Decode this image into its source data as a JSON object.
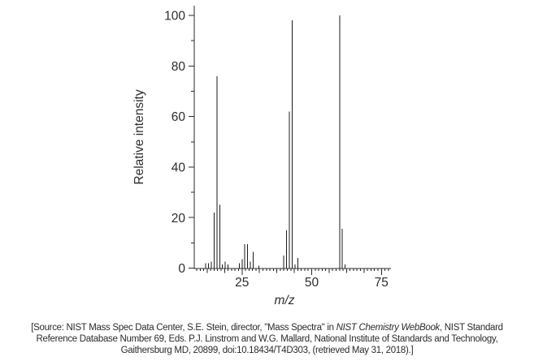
{
  "chart_data": {
    "type": "bar",
    "chart_kind": "mass-spectrum-stick-plot",
    "title": "",
    "xlabel": "m/z",
    "ylabel": "Relative intensity",
    "xlim": [
      7.5,
      78.5
    ],
    "ylim": [
      0,
      100
    ],
    "grid": false,
    "legend": null,
    "x_axis": {
      "major_ticks": [
        25,
        50,
        75
      ],
      "medium_tick_step": 6.25,
      "minor_tick_step": 1.25,
      "first_minor_tick": 8.75,
      "last_minor_tick": 77.5
    },
    "y_axis": {
      "major_ticks": [
        0,
        20,
        40,
        60,
        80,
        100
      ],
      "minor_ticks": [
        10,
        30,
        50,
        70,
        90
      ]
    },
    "peaks": [
      {
        "mz": 12,
        "intensity": 2
      },
      {
        "mz": 13,
        "intensity": 2
      },
      {
        "mz": 14,
        "intensity": 2.5
      },
      {
        "mz": 15,
        "intensity": 22
      },
      {
        "mz": 16,
        "intensity": 76
      },
      {
        "mz": 17,
        "intensity": 25
      },
      {
        "mz": 18,
        "intensity": 1.5
      },
      {
        "mz": 19,
        "intensity": 2.5
      },
      {
        "mz": 20,
        "intensity": 1.5
      },
      {
        "mz": 24,
        "intensity": 2
      },
      {
        "mz": 25,
        "intensity": 3.5
      },
      {
        "mz": 26,
        "intensity": 9.5
      },
      {
        "mz": 27,
        "intensity": 9.5
      },
      {
        "mz": 28,
        "intensity": 2.5
      },
      {
        "mz": 29,
        "intensity": 6.5
      },
      {
        "mz": 31,
        "intensity": 1
      },
      {
        "mz": 40,
        "intensity": 5
      },
      {
        "mz": 41,
        "intensity": 15
      },
      {
        "mz": 42,
        "intensity": 62
      },
      {
        "mz": 43,
        "intensity": 98
      },
      {
        "mz": 44,
        "intensity": 1.5
      },
      {
        "mz": 45,
        "intensity": 4
      },
      {
        "mz": 60,
        "intensity": 100
      },
      {
        "mz": 61,
        "intensity": 15.5
      },
      {
        "mz": 62,
        "intensity": 1.5
      }
    ]
  },
  "citation": {
    "line1_prefix": "[Source: NIST Mass Spec Data Center, S.E. Stein, director, \"Mass Spectra\" in ",
    "line1_italic": "NIST Chemistry WebBook",
    "line1_suffix": ", NIST Standard",
    "line2": "Reference Database Number 69, Eds. P.J. Linstrom and W.G. Mallard, National Institute of Standards and Technology,",
    "line3": "Gaithersburg MD, 20899, doi:10.18434/T4D303, (retrieved May 31, 2018).]"
  },
  "colors": {
    "background": "#ffffff",
    "axis": "#2a2a2a",
    "peak": "#1b1b1b",
    "text": "#2d2d2d",
    "citation_text": "#2b2b2b"
  }
}
